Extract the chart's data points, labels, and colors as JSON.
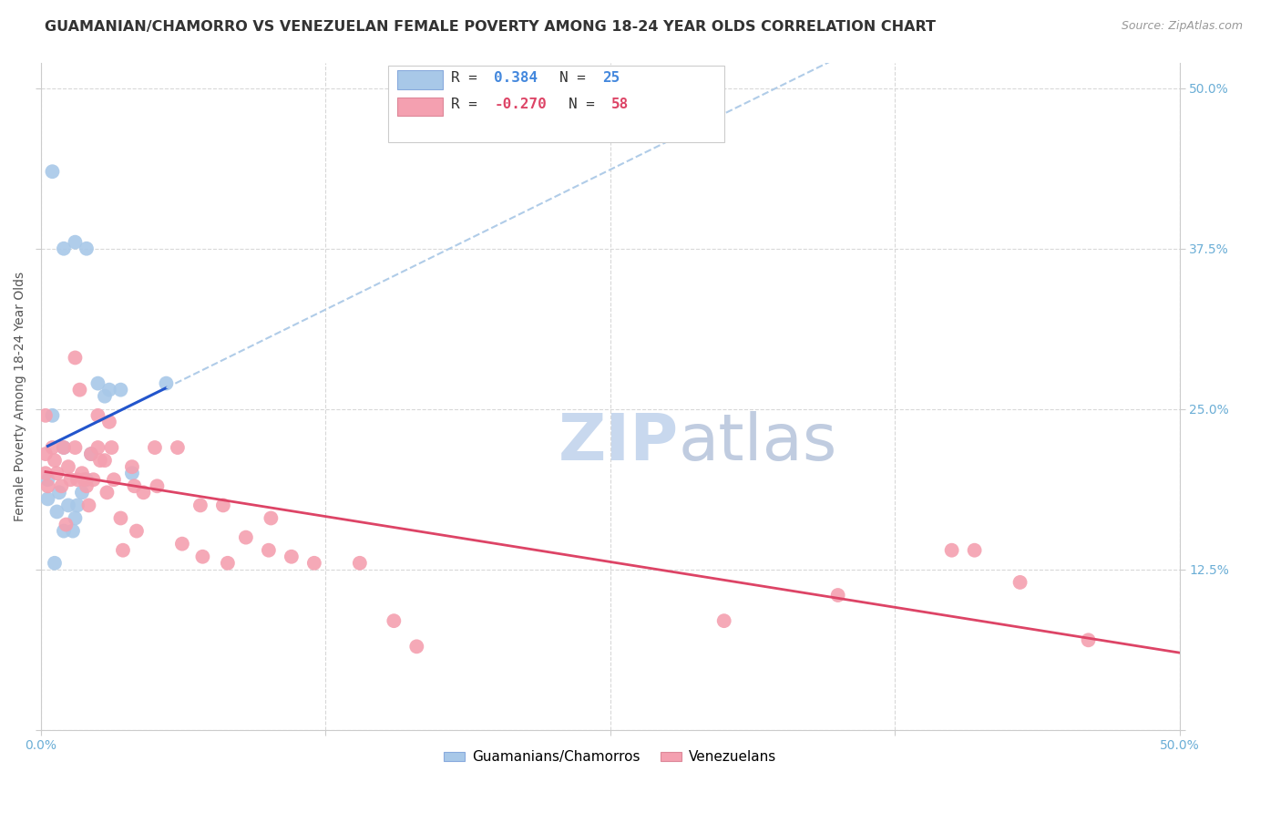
{
  "title": "GUAMANIAN/CHAMORRO VS VENEZUELAN FEMALE POVERTY AMONG 18-24 YEAR OLDS CORRELATION CHART",
  "source": "Source: ZipAtlas.com",
  "ylabel": "Female Poverty Among 18-24 Year Olds",
  "x_ticks": [
    0.0,
    0.125,
    0.25,
    0.375,
    0.5
  ],
  "x_tick_labels": [
    "0.0%",
    "",
    "",
    "",
    "50.0%"
  ],
  "y_ticks": [
    0.0,
    0.125,
    0.25,
    0.375,
    0.5
  ],
  "y_tick_labels_right": [
    "",
    "12.5%",
    "25.0%",
    "37.5%",
    "50.0%"
  ],
  "xlim": [
    0.0,
    0.5
  ],
  "ylim": [
    0.0,
    0.52
  ],
  "blue_R": 0.384,
  "blue_N": 25,
  "pink_R": -0.27,
  "pink_N": 58,
  "blue_label": "Guamanians/Chamorros",
  "pink_label": "Venezuelans",
  "background_color": "#ffffff",
  "grid_color": "#d8d8d8",
  "blue_scatter_color": "#a8c8e8",
  "pink_scatter_color": "#f4a0b0",
  "blue_line_color": "#2255cc",
  "pink_line_color": "#dd4466",
  "blue_dashed_color": "#b0cce8",
  "watermark_zip_color": "#c8d8ee",
  "watermark_atlas_color": "#c0cce0",
  "title_fontsize": 11.5,
  "source_fontsize": 9,
  "axis_label_fontsize": 10,
  "tick_fontsize": 10,
  "legend_fontsize": 11,
  "marker_size": 130,
  "blue_points_x": [
    0.003,
    0.02,
    0.015,
    0.01,
    0.005,
    0.025,
    0.03,
    0.01,
    0.008,
    0.02,
    0.035,
    0.04,
    0.015,
    0.005,
    0.012,
    0.018,
    0.022,
    0.028,
    0.01,
    0.007,
    0.014,
    0.055,
    0.003,
    0.016,
    0.006
  ],
  "blue_points_y": [
    0.195,
    0.375,
    0.38,
    0.375,
    0.245,
    0.27,
    0.265,
    0.22,
    0.185,
    0.195,
    0.265,
    0.2,
    0.165,
    0.435,
    0.175,
    0.185,
    0.215,
    0.26,
    0.155,
    0.17,
    0.155,
    0.27,
    0.18,
    0.175,
    0.13
  ],
  "pink_points_x": [
    0.002,
    0.002,
    0.002,
    0.003,
    0.005,
    0.006,
    0.007,
    0.009,
    0.01,
    0.011,
    0.012,
    0.013,
    0.015,
    0.015,
    0.016,
    0.017,
    0.018,
    0.019,
    0.02,
    0.021,
    0.022,
    0.023,
    0.025,
    0.025,
    0.026,
    0.028,
    0.029,
    0.03,
    0.031,
    0.032,
    0.035,
    0.036,
    0.04,
    0.041,
    0.042,
    0.045,
    0.05,
    0.051,
    0.06,
    0.062,
    0.07,
    0.071,
    0.08,
    0.082,
    0.09,
    0.1,
    0.101,
    0.11,
    0.12,
    0.14,
    0.155,
    0.165,
    0.3,
    0.35,
    0.4,
    0.41,
    0.43,
    0.46
  ],
  "pink_points_y": [
    0.245,
    0.215,
    0.2,
    0.19,
    0.22,
    0.21,
    0.2,
    0.19,
    0.22,
    0.16,
    0.205,
    0.195,
    0.29,
    0.22,
    0.195,
    0.265,
    0.2,
    0.195,
    0.19,
    0.175,
    0.215,
    0.195,
    0.245,
    0.22,
    0.21,
    0.21,
    0.185,
    0.24,
    0.22,
    0.195,
    0.165,
    0.14,
    0.205,
    0.19,
    0.155,
    0.185,
    0.22,
    0.19,
    0.22,
    0.145,
    0.175,
    0.135,
    0.175,
    0.13,
    0.15,
    0.14,
    0.165,
    0.135,
    0.13,
    0.13,
    0.085,
    0.065,
    0.085,
    0.105,
    0.14,
    0.14,
    0.115,
    0.07
  ]
}
